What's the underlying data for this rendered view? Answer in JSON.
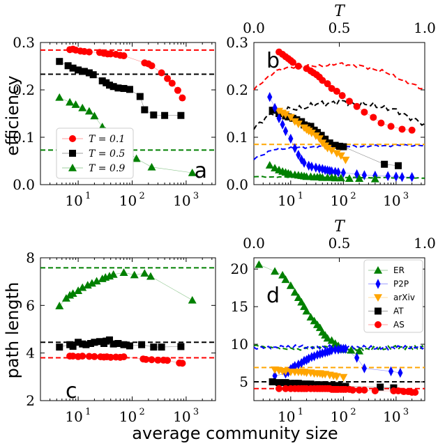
{
  "figure": {
    "ylabel_top": "efficiency",
    "ylabel_bottom": "path length",
    "xlabel": "average community size",
    "top_axis_label": "T"
  },
  "colors": {
    "AS": "#ff0000",
    "AT": "#000000",
    "arXiv": "#ffa500",
    "P2P": "#0000ff",
    "ER": "#008000"
  },
  "chart_data": [
    {
      "panel": "a",
      "type": "scatter",
      "title": "",
      "xlabel": "average community size",
      "ylabel": "efficiency",
      "xscale": "log",
      "xlim": [
        2,
        3500
      ],
      "ylim": [
        0,
        0.3
      ],
      "xticks": [
        {
          "base": "10",
          "exp": "1",
          "value": 10
        },
        {
          "base": "10",
          "exp": "2",
          "value": 100
        },
        {
          "base": "10",
          "exp": "3",
          "value": 1000
        }
      ],
      "yticks": [
        "0.0",
        "0.1",
        "0.2",
        "0.3"
      ],
      "legend": "lower-left",
      "series": [
        {
          "name": "T = 0.1",
          "color": "#ff0000",
          "marker": "circle",
          "x": [
            7,
            8,
            9,
            11,
            13,
            16,
            25,
            30,
            35,
            40,
            50,
            60,
            70,
            170,
            200,
            230,
            350,
            450,
            550,
            700,
            850
          ],
          "y": [
            0.285,
            0.286,
            0.284,
            0.282,
            0.281,
            0.28,
            0.279,
            0.277,
            0.276,
            0.276,
            0.275,
            0.273,
            0.272,
            0.257,
            0.255,
            0.251,
            0.236,
            0.224,
            0.214,
            0.199,
            0.183
          ]
        },
        {
          "name": "T = 0.5",
          "color": "#000000",
          "marker": "square",
          "x": [
            4.5,
            6.5,
            8,
            10,
            13,
            16,
            19,
            28,
            33,
            38,
            45,
            55,
            70,
            90,
            140,
            170,
            250,
            400,
            800
          ],
          "y": [
            0.26,
            0.251,
            0.246,
            0.242,
            0.239,
            0.236,
            0.232,
            0.219,
            0.215,
            0.21,
            0.207,
            0.204,
            0.203,
            0.201,
            0.186,
            0.158,
            0.147,
            0.146,
            0.146
          ]
        },
        {
          "name": "T = 0.9",
          "color": "#008000",
          "marker": "triangle",
          "x": [
            4.5,
            7,
            9,
            12,
            16,
            20,
            28,
            32,
            36,
            40,
            48,
            55,
            90,
            120,
            230,
            1300
          ],
          "y": [
            0.184,
            0.174,
            0.169,
            0.162,
            0.155,
            0.145,
            0.122,
            0.113,
            0.11,
            0.107,
            0.1,
            0.094,
            0.066,
            0.055,
            0.037,
            0.025
          ]
        }
      ],
      "reference_lines": [
        {
          "y": 0.284,
          "color": "#ff0000"
        },
        {
          "y": 0.233,
          "color": "#000000"
        },
        {
          "y": 0.073,
          "color": "#008000"
        }
      ],
      "annotation": "a"
    },
    {
      "panel": "b",
      "type": "scatter",
      "xscale": "log",
      "xlim": [
        2,
        3500
      ],
      "ylim": [
        0,
        0.3
      ],
      "top_axis": {
        "label": "T",
        "ticks": [
          "0.0",
          "0.5",
          "1.0"
        ],
        "range": [
          0,
          1
        ]
      },
      "xticks": [
        {
          "base": "10",
          "exp": "1",
          "value": 10
        },
        {
          "base": "10",
          "exp": "2",
          "value": 100
        },
        {
          "base": "10",
          "exp": "3",
          "value": 1000
        }
      ],
      "yticks": [
        "0.0",
        "0.1",
        "0.2",
        "0.3"
      ],
      "series": [
        {
          "name": "AS",
          "color": "#ff0000",
          "marker": "circle",
          "x": [
            6,
            7,
            8,
            9,
            10,
            11,
            14,
            20,
            24,
            27,
            31,
            35,
            40,
            50,
            60,
            75,
            95,
            130,
            180,
            250,
            370,
            520,
            800,
            1300,
            2000
          ],
          "y": [
            0.28,
            0.275,
            0.27,
            0.266,
            0.262,
            0.258,
            0.25,
            0.245,
            0.24,
            0.236,
            0.232,
            0.227,
            0.22,
            0.213,
            0.203,
            0.197,
            0.188,
            0.176,
            0.165,
            0.153,
            0.142,
            0.13,
            0.123,
            0.117,
            0.115
          ]
        },
        {
          "name": "AT",
          "color": "#000000",
          "marker": "square",
          "x": [
            4.5,
            6,
            8,
            9,
            11,
            13,
            16,
            18,
            20,
            24,
            28,
            32,
            38,
            45,
            55,
            70,
            85,
            100,
            600,
            1100
          ],
          "y": [
            0.157,
            0.15,
            0.145,
            0.143,
            0.14,
            0.137,
            0.133,
            0.126,
            0.124,
            0.123,
            0.115,
            0.11,
            0.104,
            0.096,
            0.088,
            0.083,
            0.081,
            0.08,
            0.043,
            0.04
          ]
        },
        {
          "name": "arXiv",
          "color": "#ffa500",
          "marker": "triangle-down",
          "x": [
            6,
            7,
            8,
            10,
            12,
            14,
            18,
            20,
            22,
            25,
            30,
            35,
            40,
            45,
            50,
            60,
            75,
            90,
            110
          ],
          "y": [
            0.155,
            0.151,
            0.148,
            0.142,
            0.133,
            0.128,
            0.12,
            0.116,
            0.113,
            0.109,
            0.103,
            0.097,
            0.088,
            0.082,
            0.077,
            0.072,
            0.066,
            0.061,
            0.052
          ]
        },
        {
          "name": "P2P",
          "color": "#0000ff",
          "marker": "diamond",
          "x": [
            4,
            5,
            6,
            7,
            8,
            10,
            12,
            14,
            16,
            18,
            22,
            25,
            30,
            35,
            40,
            45,
            50,
            55,
            60,
            70,
            80,
            100,
            180,
            250,
            400,
            700,
            1000,
            1300,
            2000
          ],
          "y": [
            0.185,
            0.162,
            0.14,
            0.127,
            0.113,
            0.097,
            0.077,
            0.063,
            0.053,
            0.046,
            0.04,
            0.038,
            0.036,
            0.034,
            0.033,
            0.031,
            0.03,
            0.029,
            0.028,
            0.027,
            0.026,
            0.025,
            0.022,
            0.02,
            0.019,
            0.018,
            0.017,
            0.016,
            0.016
          ]
        },
        {
          "name": "ER",
          "color": "#008000",
          "marker": "triangle",
          "x": [
            4,
            5,
            6,
            7,
            8,
            9,
            10,
            12,
            14,
            16,
            18,
            20,
            24,
            28,
            32,
            36,
            40,
            50,
            60,
            70,
            90,
            130,
            200,
            400
          ],
          "y": [
            0.041,
            0.035,
            0.031,
            0.028,
            0.026,
            0.024,
            0.022,
            0.021,
            0.02,
            0.019,
            0.018,
            0.017,
            0.017,
            0.016,
            0.016,
            0.016,
            0.015,
            0.015,
            0.015,
            0.014,
            0.014,
            0.013,
            0.013,
            0.012
          ]
        }
      ],
      "annotation": "b"
    },
    {
      "panel": "c",
      "type": "scatter",
      "xlabel": "average community size",
      "ylabel": "path length",
      "xscale": "log",
      "xlim": [
        2,
        3500
      ],
      "ylim": [
        2,
        8
      ],
      "xticks": [
        {
          "base": "10",
          "exp": "1",
          "value": 10
        },
        {
          "base": "10",
          "exp": "2",
          "value": 100
        },
        {
          "base": "10",
          "exp": "3",
          "value": 1000
        }
      ],
      "yticks": [
        "2",
        "4",
        "6",
        "8"
      ],
      "series": [
        {
          "name": "ER",
          "color": "#008000",
          "marker": "triangle",
          "x": [
            4.5,
            6,
            7,
            8,
            10,
            12,
            15,
            18,
            22,
            28,
            32,
            38,
            45,
            70,
            110,
            170,
            220,
            1300
          ],
          "y": [
            5.98,
            6.3,
            6.43,
            6.5,
            6.62,
            6.75,
            6.85,
            6.93,
            7.02,
            7.12,
            7.18,
            7.23,
            7.3,
            7.38,
            7.28,
            7.35,
            7.22,
            6.22
          ]
        },
        {
          "name": "AT",
          "color": "#000000",
          "marker": "square",
          "x": [
            4.5,
            7,
            8,
            10,
            12,
            14,
            17,
            20,
            25,
            30,
            33,
            38,
            45,
            55,
            70,
            90,
            150,
            250,
            350,
            800
          ],
          "y": [
            4.25,
            4.35,
            4.28,
            4.45,
            4.38,
            4.35,
            4.4,
            4.45,
            4.48,
            4.4,
            4.5,
            4.55,
            4.38,
            4.4,
            4.35,
            4.3,
            4.35,
            4.25,
            4.25,
            4.27
          ]
        },
        {
          "name": "AS",
          "color": "#ff0000",
          "marker": "circle",
          "x": [
            7,
            8,
            10,
            12,
            16,
            20,
            26,
            30,
            34,
            40,
            50,
            60,
            70,
            160,
            180,
            230,
            300,
            380,
            450,
            750,
            850
          ],
          "y": [
            3.87,
            3.87,
            3.85,
            3.87,
            3.86,
            3.85,
            3.84,
            3.83,
            3.84,
            3.82,
            3.83,
            3.82,
            3.84,
            3.75,
            3.73,
            3.72,
            3.7,
            3.7,
            3.69,
            3.58,
            3.57
          ]
        }
      ],
      "reference_lines": [
        {
          "y": 7.58,
          "color": "#008000"
        },
        {
          "y": 4.45,
          "color": "#000000"
        },
        {
          "y": 3.8,
          "color": "#ff0000"
        }
      ],
      "annotation": "c"
    },
    {
      "panel": "d",
      "type": "scatter",
      "xscale": "log",
      "xlim": [
        2,
        3500
      ],
      "ylim": [
        2.5,
        21.5
      ],
      "top_axis": {
        "label": "T",
        "ticks": [
          "0.0",
          "0.5",
          "1.0"
        ],
        "range": [
          0,
          1
        ]
      },
      "xticks": [
        {
          "base": "10",
          "exp": "1",
          "value": 10
        },
        {
          "base": "10",
          "exp": "2",
          "value": 100
        },
        {
          "base": "10",
          "exp": "3",
          "value": 1000
        }
      ],
      "yticks": [
        "5",
        "10",
        "15",
        "20"
      ],
      "legend": "top-right",
      "series": [
        {
          "name": "ER",
          "color": "#008000",
          "marker": "triangle",
          "x": [
            2.5,
            5,
            7,
            8,
            10,
            12,
            14,
            16,
            18,
            20,
            24,
            28,
            32,
            36,
            40,
            45,
            50,
            60,
            70,
            80,
            90,
            100,
            140,
            200
          ],
          "y": [
            20.6,
            19.7,
            19.2,
            18.6,
            17.8,
            16.9,
            16.2,
            15.6,
            15,
            14.4,
            13.6,
            13.1,
            12.6,
            12.2,
            11.6,
            11.2,
            10.8,
            10.5,
            10.1,
            9.8,
            9.5,
            9.3,
            9.2,
            9.1
          ]
        },
        {
          "name": "P2P",
          "color": "#0000ff",
          "marker": "diamond",
          "x": [
            5,
            8,
            9,
            10,
            11,
            12,
            14,
            16,
            18,
            20,
            22,
            25,
            28,
            32,
            36,
            40,
            45,
            50,
            55,
            60,
            70,
            80,
            90,
            100,
            110,
            180,
            250,
            800,
            1200
          ],
          "y": [
            5.8,
            6.1,
            6.3,
            6.7,
            6.9,
            7.1,
            7.3,
            7.5,
            7.8,
            7.9,
            8.1,
            8.3,
            8.4,
            8.6,
            8.7,
            8.8,
            8.9,
            9,
            9.1,
            9.2,
            9.3,
            9.3,
            9.4,
            9.4,
            9.4,
            8.2,
            6.8,
            6.4,
            6.2
          ]
        },
        {
          "name": "arXiv",
          "color": "#ffa500",
          "marker": "triangle-down",
          "x": [
            5,
            6,
            7,
            8,
            10,
            12,
            14,
            16,
            18,
            20,
            24,
            28,
            32,
            36,
            40,
            45,
            55,
            65,
            75,
            100
          ],
          "y": [
            6.6,
            6.5,
            6.4,
            6.4,
            6.3,
            6.3,
            6.3,
            6.3,
            6.3,
            6.2,
            6.2,
            6.1,
            6.1,
            6.1,
            6,
            6,
            5.9,
            5.8,
            5.7,
            5.6
          ]
        },
        {
          "name": "AT",
          "color": "#000000",
          "marker": "square",
          "x": [
            4.5,
            6,
            8,
            10,
            12,
            14,
            16,
            18,
            20,
            24,
            28,
            32,
            36,
            40,
            45,
            50,
            55,
            60,
            70,
            80,
            90,
            100,
            110,
            500,
            900
          ],
          "y": [
            5,
            4.9,
            4.9,
            4.8,
            4.8,
            4.8,
            4.7,
            4.7,
            4.7,
            4.7,
            4.6,
            4.6,
            4.6,
            4.6,
            4.6,
            4.5,
            4.5,
            4.5,
            4.5,
            4.5,
            4.4,
            4.4,
            4.4,
            4.3,
            4.2
          ]
        },
        {
          "name": "AS",
          "color": "#ff0000",
          "marker": "circle",
          "x": [
            6,
            8,
            10,
            12,
            14,
            16,
            18,
            20,
            24,
            28,
            32,
            36,
            40,
            45,
            50,
            55,
            60,
            65,
            70,
            75,
            80,
            90,
            100,
            110,
            130,
            150,
            200,
            250,
            400,
            900,
            1100,
            1400,
            1700,
            2000,
            2300
          ],
          "y": [
            4.1,
            4.1,
            4.1,
            4.1,
            4.1,
            4.1,
            4.1,
            4.1,
            4.1,
            4.1,
            4.1,
            4.1,
            4.1,
            4.1,
            4.1,
            4.1,
            4,
            4,
            4,
            4,
            4,
            4,
            4,
            4,
            4,
            3.9,
            3.9,
            3.9,
            3.8,
            3.8,
            3.8,
            3.7,
            3.7,
            3.6,
            3.6
          ]
        }
      ],
      "reference_lines": [
        {
          "y": 6.9,
          "color": "#ffa500"
        },
        {
          "y": 5.0,
          "color": "#000000"
        },
        {
          "y": 4.1,
          "color": "#ff0000"
        }
      ],
      "annotation": "d"
    }
  ],
  "legend_a": [
    {
      "label": "T = 0.1",
      "color": "#ff0000",
      "marker": "circle"
    },
    {
      "label": "T = 0.5",
      "color": "#000000",
      "marker": "square"
    },
    {
      "label": "T = 0.9",
      "color": "#008000",
      "marker": "triangle"
    }
  ],
  "legend_d": [
    {
      "label": "ER",
      "color": "#008000",
      "marker": "triangle"
    },
    {
      "label": "P2P",
      "color": "#0000ff",
      "marker": "diamond"
    },
    {
      "label": "arXiv",
      "color": "#ffa500",
      "marker": "triangle-down"
    },
    {
      "label": "AT",
      "color": "#000000",
      "marker": "square"
    },
    {
      "label": "AS",
      "color": "#ff0000",
      "marker": "circle"
    }
  ]
}
